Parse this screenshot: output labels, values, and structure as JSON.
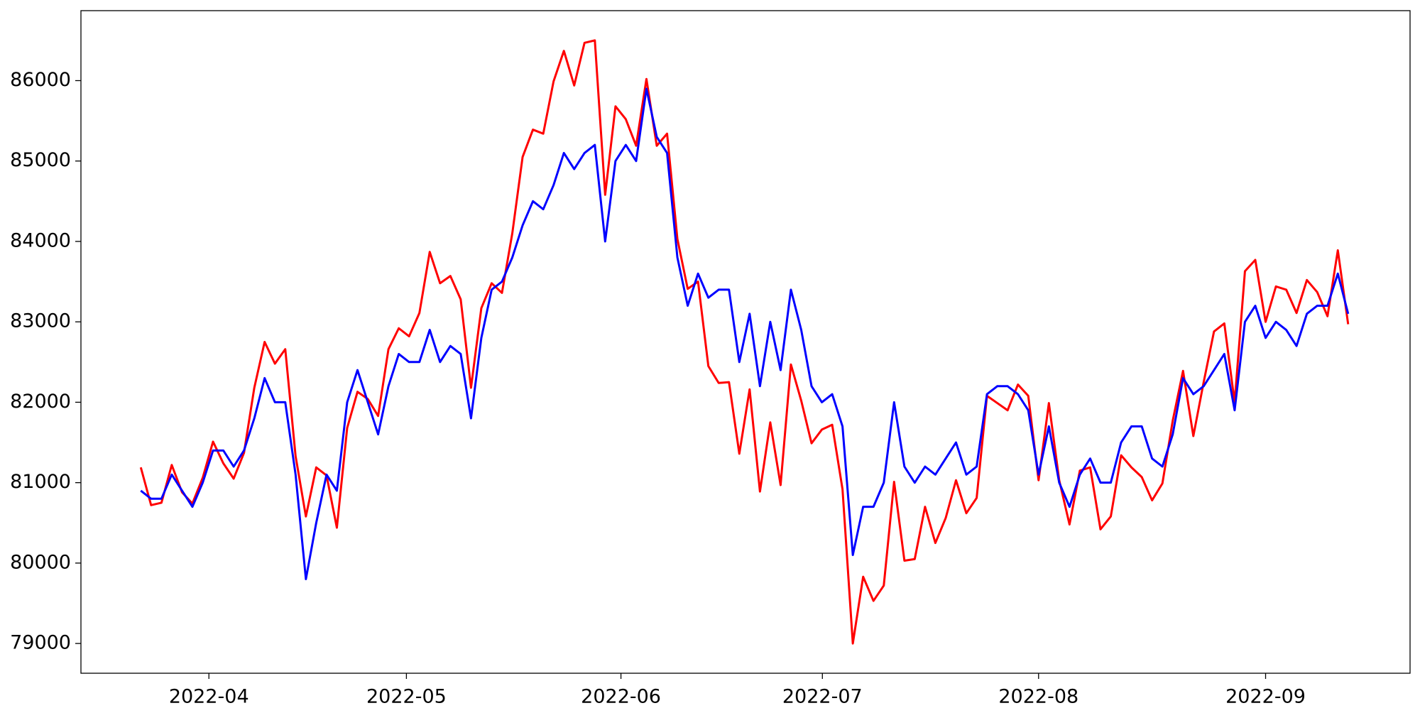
{
  "chart_data": {
    "type": "line",
    "series": [
      {
        "color": "#ff0000",
        "values": [
          81190,
          80720,
          80750,
          81220,
          80880,
          80740,
          81060,
          81510,
          81240,
          81050,
          81370,
          82180,
          82750,
          82480,
          82660,
          81330,
          80580,
          81190,
          81090,
          80440,
          81680,
          82130,
          82040,
          81830,
          82660,
          82920,
          82820,
          83110,
          83870,
          83480,
          83570,
          83280,
          82180,
          83170,
          83480,
          83360,
          84100,
          85050,
          85390,
          85340,
          85990,
          86370,
          85940,
          86470,
          86500,
          84580,
          85680,
          85520,
          85190,
          86020,
          85190,
          85340,
          84030,
          83410,
          83500,
          82450,
          82240,
          82250,
          81360,
          82160,
          80890,
          81750,
          80970,
          82470,
          82020,
          81490,
          81660,
          81720,
          80920,
          79000,
          79830,
          79530,
          79720,
          81010,
          80030,
          80050,
          80700,
          80250,
          80560,
          81030,
          80620,
          80810,
          82080,
          81990,
          81900,
          82220,
          82080,
          81030,
          81990,
          81030,
          80480,
          81150,
          81190,
          80420,
          80580,
          81340,
          81190,
          81070,
          80780,
          80990,
          81770,
          82390,
          81580,
          82250,
          82880,
          82980,
          82000,
          83630,
          83770,
          83000,
          83440,
          83400,
          83110,
          83520,
          83370,
          83070,
          83890,
          82970
        ]
      },
      {
        "color": "#0000ff",
        "values": [
          80900,
          80800,
          80800,
          81100,
          80900,
          80700,
          81000,
          81400,
          81400,
          81200,
          81400,
          81800,
          82300,
          82000,
          82000,
          81100,
          79800,
          80500,
          81100,
          80900,
          82000,
          82400,
          82000,
          81600,
          82200,
          82600,
          82500,
          82500,
          82900,
          82500,
          82700,
          82600,
          81800,
          82800,
          83400,
          83500,
          83800,
          84200,
          84500,
          84400,
          84700,
          85100,
          84900,
          85100,
          85200,
          84000,
          85000,
          85200,
          85000,
          85900,
          85300,
          85100,
          83800,
          83200,
          83600,
          83300,
          83400,
          83400,
          82500,
          83100,
          82200,
          83000,
          82400,
          83400,
          82900,
          82200,
          82000,
          82100,
          81700,
          80100,
          80700,
          80700,
          81000,
          82000,
          81200,
          81000,
          81200,
          81100,
          81300,
          81500,
          81100,
          81200,
          82100,
          82200,
          82200,
          82100,
          81900,
          81100,
          81700,
          81000,
          80700,
          81100,
          81300,
          81000,
          81000,
          81500,
          81700,
          81700,
          81300,
          81200,
          81600,
          82300,
          82100,
          82200,
          82400,
          82600,
          81900,
          83000,
          83200,
          82800,
          83000,
          82900,
          82700,
          83100,
          83200,
          83200,
          83600,
          83100
        ]
      }
    ],
    "xlim": [
      -5.8,
      123
    ],
    "xticks": [
      {
        "value": 6.6,
        "label": "2022-04"
      },
      {
        "value": 25.74,
        "label": "2022-05"
      },
      {
        "value": 46.53,
        "label": "2022-06"
      },
      {
        "value": 66.05,
        "label": "2022-07"
      },
      {
        "value": 87,
        "label": "2022-08"
      },
      {
        "value": 109,
        "label": "2022-09"
      }
    ],
    "ylim": [
      78630,
      86870
    ],
    "yticks": [
      79000,
      80000,
      81000,
      82000,
      83000,
      84000,
      85000,
      86000
    ],
    "grid": false
  }
}
